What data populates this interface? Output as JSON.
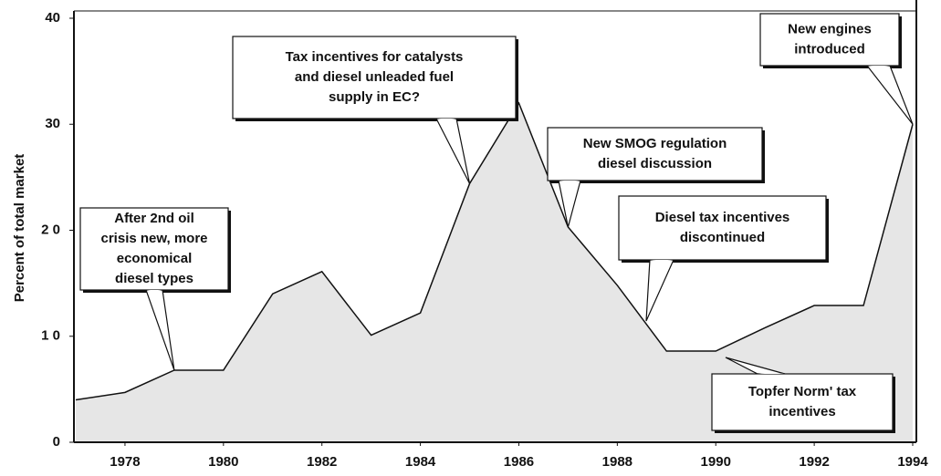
{
  "chart_data": {
    "type": "area",
    "ylabel": "Percent of total market",
    "x": [
      1977,
      1978,
      1979,
      1980,
      1981,
      1982,
      1983,
      1984,
      1985,
      1986,
      1987,
      1988,
      1989,
      1990,
      1991,
      1992,
      1993,
      1994
    ],
    "values": [
      4.0,
      4.7,
      6.8,
      6.8,
      14,
      16.1,
      10.1,
      12.2,
      24.4,
      32,
      20.3,
      14.8,
      8.6,
      8.6,
      10.8,
      12.9,
      12.9,
      30
    ],
    "color": "#111111",
    "fill": "#e6e6e6",
    "xlim": [
      1977,
      1994
    ],
    "xticks": [
      1978,
      1980,
      1982,
      1984,
      1986,
      1988,
      1990,
      1992,
      1994
    ],
    "ylim": [
      0,
      40
    ],
    "yticks": [
      0,
      {
        "value": 10,
        "label": "1 0"
      },
      {
        "value": 20,
        "label": "2 0"
      },
      30,
      40
    ],
    "annotations": [
      [
        "After 2nd oil",
        "crisis new, more",
        "economical",
        "diesel types"
      ],
      [
        "Tax incentives for catalysts",
        "and diesel unleaded fuel",
        "supply in EC?"
      ],
      [
        "New SMOG regulation",
        "diesel discussion"
      ],
      [
        "Diesel tax incentives",
        "discontinued"
      ],
      [
        "New engines",
        "introduced"
      ],
      [
        "Topfer Norm' tax",
        "incentives"
      ]
    ]
  }
}
